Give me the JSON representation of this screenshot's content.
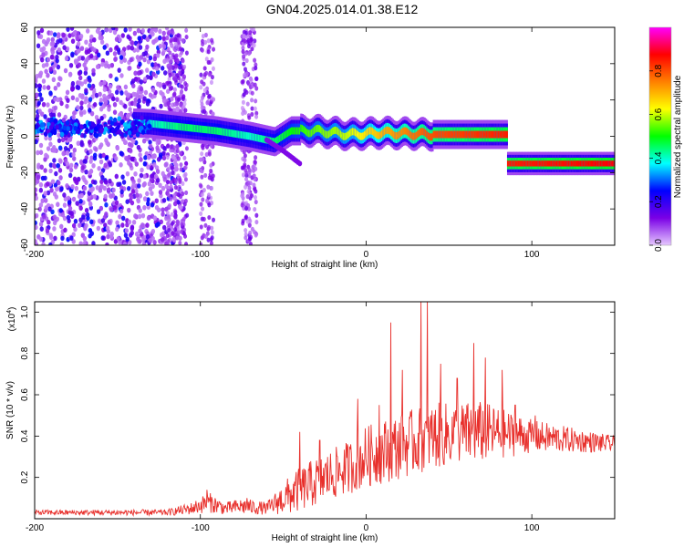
{
  "title": "GN04.2025.014.01.38.E12",
  "chart_data": [
    {
      "type": "heatmap",
      "xlabel": "Height of straight line (km)",
      "ylabel": "Frequency (Hz)",
      "xlim": [
        -200,
        150
      ],
      "ylim": [
        -60,
        60
      ],
      "xticks": [
        "-200",
        "-100",
        "0",
        "100"
      ],
      "xtick_values": [
        -200,
        -100,
        0,
        100
      ],
      "yticks": [
        "-60",
        "-40",
        "-20",
        "0",
        "20",
        "40",
        "60"
      ],
      "ytick_values": [
        -60,
        -40,
        -20,
        0,
        20,
        40,
        60
      ],
      "colorbar": {
        "label": "Normalized spectral amplitude",
        "range": [
          0,
          1
        ],
        "ticks": [
          "0.0",
          "0.2",
          "0.4",
          "0.6",
          "0.8"
        ],
        "tick_values": [
          0,
          0.2,
          0.4,
          0.6,
          0.8
        ],
        "colors": [
          "#e6c8ff",
          "#7a00e6",
          "#0000ff",
          "#00ffff",
          "#00ff00",
          "#ffff00",
          "#ff8000",
          "#ff0000",
          "#ff00ff"
        ]
      },
      "ridge": [
        {
          "x": -200,
          "y": 5,
          "amp": 0.3
        },
        {
          "x": -160,
          "y": 8,
          "amp": 0.35
        },
        {
          "x": -130,
          "y": 7,
          "amp": 0.4
        },
        {
          "x": -110,
          "y": 5,
          "amp": 0.45
        },
        {
          "x": -90,
          "y": 3,
          "amp": 0.45
        },
        {
          "x": -70,
          "y": 0,
          "amp": 0.4
        },
        {
          "x": -55,
          "y": -3,
          "amp": 0.45
        },
        {
          "x": -45,
          "y": 3,
          "amp": 0.5
        },
        {
          "x": -30,
          "y": 3,
          "amp": 0.55
        },
        {
          "x": -10,
          "y": 1,
          "amp": 0.6
        },
        {
          "x": 10,
          "y": 2,
          "amp": 0.7
        },
        {
          "x": 40,
          "y": 1,
          "amp": 0.8
        },
        {
          "x": 85,
          "y": 1,
          "amp": 0.85
        },
        {
          "x": 85.1,
          "y": -15,
          "amp": 0.85
        },
        {
          "x": 150,
          "y": -15,
          "amp": 0.88
        }
      ],
      "side_branch": [
        {
          "x": -60,
          "y": -2
        },
        {
          "x": -50,
          "y": -8
        },
        {
          "x": -40,
          "y": -15
        }
      ]
    },
    {
      "type": "line",
      "xlabel": "Height of straight line (km)",
      "ylabel": "SNR (10 * v/v)",
      "yscale_label": "(x10",
      "yscale_exp": "4",
      "yscale_close": ")",
      "xlim": [
        -200,
        150
      ],
      "ylim": [
        0,
        1.05
      ],
      "xticks": [
        "-200",
        "-100",
        "0",
        "100"
      ],
      "xtick_values": [
        -200,
        -100,
        0,
        100
      ],
      "yticks": [
        "0.2",
        "0.4",
        "0.6",
        "0.8",
        "1.0"
      ],
      "ytick_values": [
        0.2,
        0.4,
        0.6,
        0.8,
        1.0
      ],
      "color": "#e8302c",
      "envelope": [
        {
          "x": -200,
          "base": 0.03,
          "spread": 0.012
        },
        {
          "x": -120,
          "base": 0.03,
          "spread": 0.015
        },
        {
          "x": -105,
          "base": 0.05,
          "spread": 0.03
        },
        {
          "x": -95,
          "base": 0.08,
          "spread": 0.05
        },
        {
          "x": -85,
          "base": 0.05,
          "spread": 0.03
        },
        {
          "x": -75,
          "base": 0.06,
          "spread": 0.04
        },
        {
          "x": -60,
          "base": 0.05,
          "spread": 0.03
        },
        {
          "x": -45,
          "base": 0.12,
          "spread": 0.1
        },
        {
          "x": -30,
          "base": 0.18,
          "spread": 0.12
        },
        {
          "x": -10,
          "base": 0.25,
          "spread": 0.13
        },
        {
          "x": 0,
          "base": 0.3,
          "spread": 0.15
        },
        {
          "x": 20,
          "base": 0.35,
          "spread": 0.16
        },
        {
          "x": 40,
          "base": 0.4,
          "spread": 0.16
        },
        {
          "x": 70,
          "base": 0.42,
          "spread": 0.15
        },
        {
          "x": 100,
          "base": 0.4,
          "spread": 0.08
        },
        {
          "x": 150,
          "base": 0.36,
          "spread": 0.04
        }
      ],
      "spikes": [
        {
          "x": -96,
          "y": 0.14
        },
        {
          "x": -72,
          "y": 0.1
        },
        {
          "x": -40,
          "y": 0.42
        },
        {
          "x": -28,
          "y": 0.38
        },
        {
          "x": -5,
          "y": 0.58
        },
        {
          "x": 8,
          "y": 0.55
        },
        {
          "x": 15,
          "y": 0.95
        },
        {
          "x": 22,
          "y": 0.72
        },
        {
          "x": 33,
          "y": 1.05
        },
        {
          "x": 37,
          "y": 1.05
        },
        {
          "x": 45,
          "y": 0.75
        },
        {
          "x": 55,
          "y": 0.68
        },
        {
          "x": 65,
          "y": 0.85
        },
        {
          "x": 72,
          "y": 0.78
        },
        {
          "x": 82,
          "y": 0.72
        },
        {
          "x": 90,
          "y": 0.55
        },
        {
          "x": 102,
          "y": 0.5
        }
      ]
    }
  ]
}
